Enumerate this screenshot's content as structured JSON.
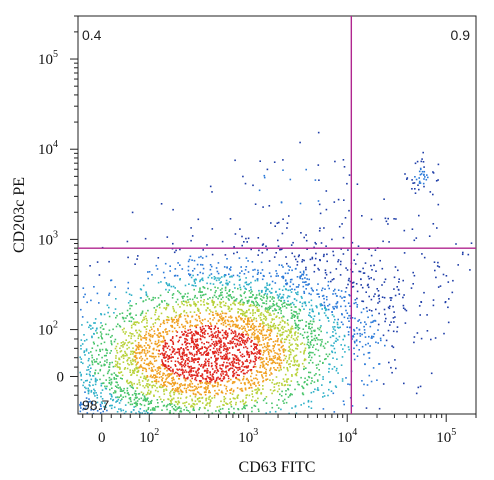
{
  "chart_data": {
    "type": "scatter",
    "subtype": "flow-cytometry-density-dot-plot",
    "xlabel": "CD63 FITC",
    "ylabel": "CD203c PE",
    "x_scale": "biexponential",
    "y_scale": "biexponential",
    "xlim": [
      -40,
      200000
    ],
    "ylim": [
      -50,
      300000
    ],
    "x_ticks": [
      {
        "base": "0",
        "exp": "",
        "value": 0
      },
      {
        "base": "10",
        "exp": "2",
        "value": 100
      },
      {
        "base": "10",
        "exp": "3",
        "value": 1000
      },
      {
        "base": "10",
        "exp": "4",
        "value": 10000
      },
      {
        "base": "10",
        "exp": "5",
        "value": 100000
      }
    ],
    "y_ticks": [
      {
        "base": "0",
        "exp": "",
        "value": 0
      },
      {
        "base": "10",
        "exp": "2",
        "value": 100
      },
      {
        "base": "10",
        "exp": "3",
        "value": 1000
      },
      {
        "base": "10",
        "exp": "4",
        "value": 10000
      },
      {
        "base": "10",
        "exp": "5",
        "value": 100000
      }
    ],
    "gate": {
      "x": 11000,
      "y": 800,
      "color": "#b0268f"
    },
    "quadrant_percentages": {
      "upper_left": "0.4",
      "upper_right": "0.9",
      "lower_left": "98.7"
    },
    "populations": [
      {
        "name": "",
        "center_x": 400,
        "center_y": 50,
        "weight": 0.987,
        "spread_x": 0.9,
        "spread_y": 0.55
      },
      {
        "name": "",
        "center_x": 3000,
        "center_y": 4000,
        "weight": 0.004,
        "spread_x": 0.4,
        "spread_y": 0.25
      },
      {
        "name": "",
        "center_x": 55000,
        "center_y": 5200,
        "weight": 0.009,
        "spread_x": 0.08,
        "spread_y": 0.1
      }
    ],
    "density_colors": [
      "#1f3ea8",
      "#2a79d8",
      "#2fb0c8",
      "#48c46a",
      "#b8d23a",
      "#f0a020",
      "#e0261e"
    ],
    "grid": false,
    "legend": "none"
  }
}
